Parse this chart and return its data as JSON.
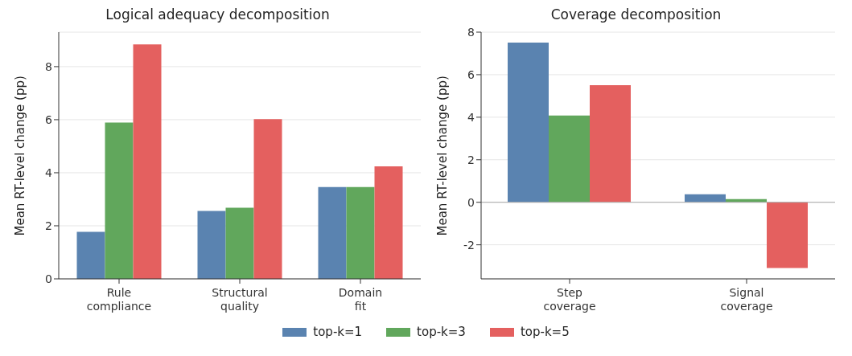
{
  "chart_data": [
    {
      "type": "bar",
      "title": "Logical adequacy decomposition",
      "ylabel": "Mean RT-level change (pp)",
      "categories": [
        "Rule compliance",
        "Structural quality",
        "Domain fit"
      ],
      "series": [
        {
          "name": "top-k=1",
          "color": "#5a83b0",
          "values": [
            1.77,
            2.56,
            3.46
          ]
        },
        {
          "name": "top-k=3",
          "color": "#61a75c",
          "values": [
            5.89,
            2.68,
            3.46
          ]
        },
        {
          "name": "top-k=5",
          "color": "#e4605f",
          "values": [
            8.84,
            6.02,
            4.24
          ]
        }
      ],
      "ylim": [
        0,
        9.3
      ],
      "yticks": [
        0,
        2,
        4,
        6,
        8
      ],
      "grid": "y",
      "legend": "bottom"
    },
    {
      "type": "bar",
      "title": "Coverage decomposition",
      "ylabel": "Mean RT-level change (pp)",
      "categories": [
        "Step coverage",
        "Signal coverage"
      ],
      "series": [
        {
          "color": "#5a83b0",
          "values": [
            7.51,
            0.38
          ]
        },
        {
          "color": "#61a75c",
          "values": [
            4.08,
            0.15
          ]
        },
        {
          "color": "#e4605f",
          "values": [
            5.51,
            -3.09
          ]
        }
      ],
      "ylim": [
        -3.6,
        8
      ],
      "yticks": [
        -2,
        0,
        2,
        4,
        6,
        8
      ],
      "grid": "y",
      "ref_lines": [
        {
          "axis": "y",
          "value": 0,
          "color": "#aaaaaa"
        }
      ]
    }
  ]
}
